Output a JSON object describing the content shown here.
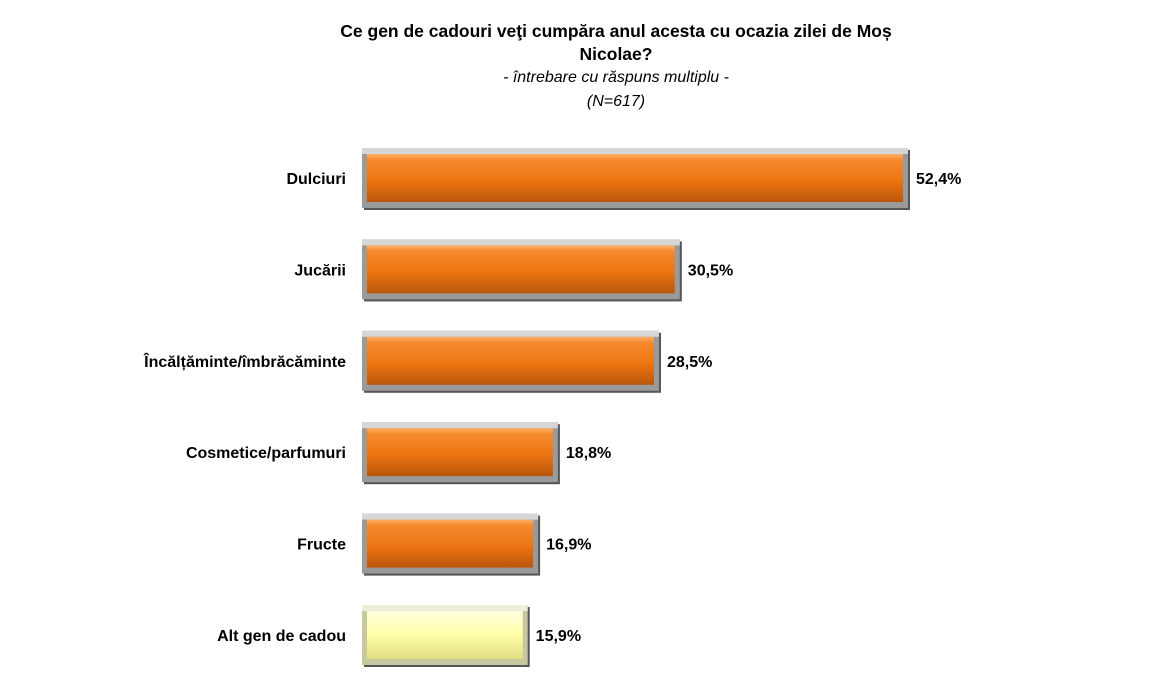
{
  "chart_data": {
    "type": "bar",
    "orientation": "horizontal",
    "title_lines": [
      "Ce gen de cadouri veţi cumpăra anul acesta cu ocazia zilei de Moș",
      "Nicolae?"
    ],
    "subtitle": "- întrebare cu răspuns multiplu -",
    "sample": "(N=617)",
    "categories": [
      "Dulciuri",
      "Jucării",
      "Încălțăminte/îmbrăcăminte",
      "Cosmetice/parfumuri",
      "Fructe",
      "Alt gen de cadou"
    ],
    "values": [
      52.4,
      30.5,
      28.5,
      18.8,
      16.9,
      15.9
    ],
    "value_labels": [
      "52,4%",
      "30,5%",
      "28,5%",
      "18,8%",
      "16,9%",
      "15,9%"
    ],
    "bar_colors": [
      "#f07a1a",
      "#f07a1a",
      "#f07a1a",
      "#f07a1a",
      "#f07a1a",
      "#ffffa8"
    ],
    "xlim": [
      0,
      60
    ],
    "grid": false,
    "legend": "none"
  }
}
